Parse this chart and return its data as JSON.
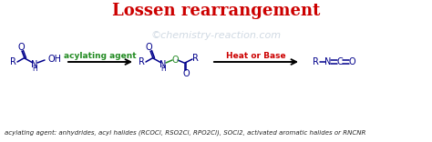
{
  "title": "Lossen rearrangement",
  "title_color": "#cc0000",
  "title_fontsize": 13,
  "watermark": "©chemistry-reaction.com",
  "watermark_color": "#aabbcc",
  "watermark_fontsize": 8,
  "bg_color": "#ffffff",
  "mol_color": "#00008B",
  "green_color": "#228B22",
  "red_color": "#cc0000",
  "footnote": "acylating agent: anhydrides, acyl halides (RCOCl, RSO2Cl, RPO2Cl), SOCl2, activated aromatic halides or RNCNR",
  "footnote_fontsize": 5.0,
  "footnote_color": "#222222",
  "figw": 4.74,
  "figh": 1.56,
  "dpi": 100
}
